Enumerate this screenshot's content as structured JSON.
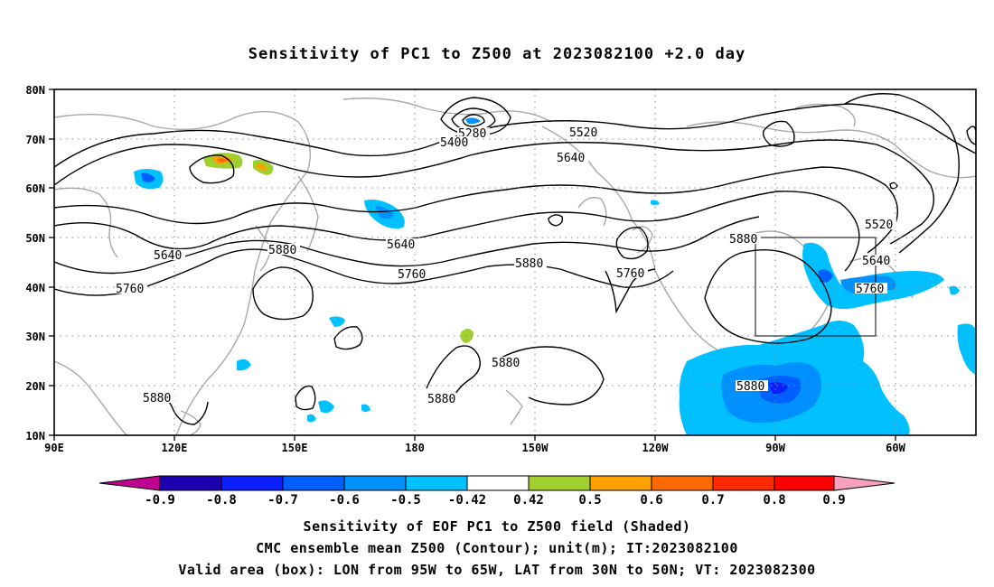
{
  "title": "Sensitivity of PC1 to Z500 at 2023082100 +2.0 day",
  "map": {
    "lat_range": [
      10,
      80
    ],
    "lon_range": [
      90,
      320
    ],
    "lat_ticks": [
      "10N",
      "20N",
      "30N",
      "40N",
      "50N",
      "60N",
      "70N",
      "80N"
    ],
    "lon_ticks": [
      "90E",
      "120E",
      "150E",
      "180",
      "150W",
      "120W",
      "90W",
      "60W"
    ],
    "lon_tick_values": [
      90,
      120,
      150,
      180,
      210,
      240,
      270,
      300
    ],
    "grid": "dotted",
    "valid_box": {
      "lon_from": "95W",
      "lon_to": "65W",
      "lat_from": "30N",
      "lat_to": "50N"
    },
    "contour_labels": [
      "5280",
      "5400",
      "5520",
      "5640",
      "5640",
      "5640",
      "5760",
      "5760",
      "5880",
      "5880",
      "5880",
      "5880",
      "5880",
      "5880",
      "5880",
      "5760",
      "5520",
      "5640",
      "5760"
    ]
  },
  "colorbar": {
    "labels": [
      "-0.9",
      "-0.8",
      "-0.7",
      "-0.6",
      "-0.5",
      "-0.42",
      "0.42",
      "0.5",
      "0.6",
      "0.7",
      "0.8",
      "0.9"
    ],
    "colors": [
      "#c00090",
      "#1c00b0",
      "#0a20ff",
      "#0060ff",
      "#0090ff",
      "#00c0ff",
      "#ffffff",
      "#a0d030",
      "#ffa000",
      "#ff6a00",
      "#ff2a00",
      "#ff0000",
      "#f7a0c0"
    ]
  },
  "caption": {
    "line1": "Sensitivity of EOF PC1 to Z500 field (Shaded)",
    "line2": "CMC ensemble mean Z500 (Contour); unit(m); IT:2023082100",
    "line3": "Valid area (box): LON from 95W to 65W, LAT from 30N to 50N; VT: 2023082300"
  }
}
